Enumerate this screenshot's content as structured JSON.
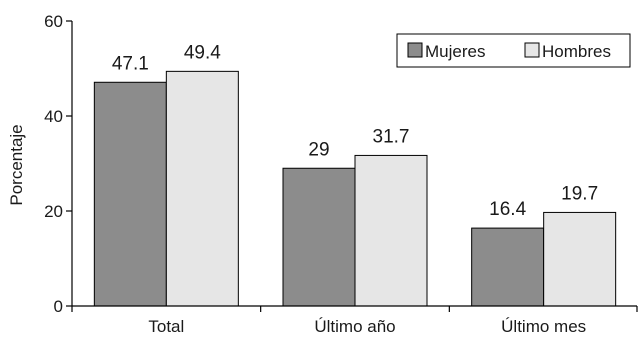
{
  "chart_data": {
    "type": "bar",
    "categories": [
      "Total",
      "Último año",
      "Último mes"
    ],
    "series": [
      {
        "name": "Mujeres",
        "values": [
          47.1,
          29,
          16.4
        ],
        "color": "#8c8c8c"
      },
      {
        "name": "Hombres",
        "values": [
          49.4,
          31.7,
          19.7
        ],
        "color": "#e6e6e6"
      }
    ],
    "data_labels": [
      [
        "47.1",
        "29",
        "16.4"
      ],
      [
        "49.4",
        "31.7",
        "19.7"
      ]
    ],
    "ylabel": "Porcentaje",
    "xlabel": "",
    "ylim": [
      0,
      60
    ],
    "yticks": [
      0,
      20,
      40,
      60
    ],
    "grid": false,
    "legend_position": "top-right"
  }
}
